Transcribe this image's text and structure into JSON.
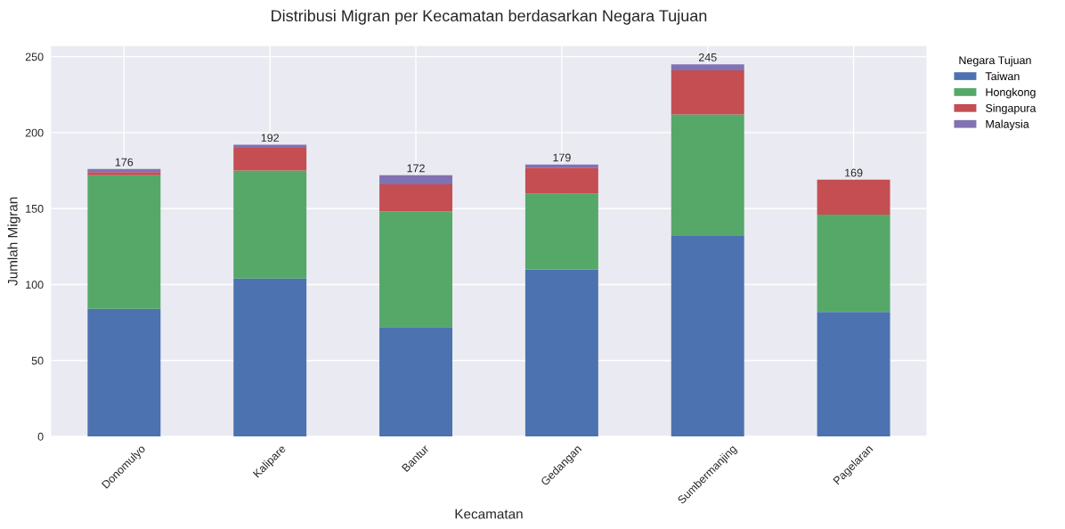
{
  "chart_data": {
    "type": "bar",
    "title": "Distribusi Migran per Kecamatan berdasarkan Negara Tujuan",
    "xlabel": "Kecamatan",
    "ylabel": "Jumlah Migran",
    "legend_title": "Negara Tujuan",
    "categories": [
      "Donomulyo",
      "Kalipare",
      "Bantur",
      "Gedangan",
      "Sumbermanjing",
      "Pagelaran"
    ],
    "stacked": true,
    "series": [
      {
        "name": "Taiwan",
        "color": "#4c72b0",
        "values": [
          84,
          104,
          72,
          110,
          132,
          82
        ]
      },
      {
        "name": "Hongkong",
        "color": "#55a868",
        "values": [
          88,
          71,
          76,
          50,
          80,
          64
        ]
      },
      {
        "name": "Singapura",
        "color": "#c44e52",
        "values": [
          2,
          15,
          18,
          17,
          29,
          23
        ]
      },
      {
        "name": "Malaysia",
        "color": "#8172b2",
        "values": [
          2,
          2,
          6,
          2,
          4,
          0
        ]
      }
    ],
    "totals": [
      "176",
      "192",
      "172",
      "179",
      "245",
      "169"
    ],
    "ylim": [
      0,
      257
    ],
    "yticks": [
      0,
      50,
      100,
      150,
      200,
      250
    ],
    "grid": true,
    "legend": "top right"
  }
}
